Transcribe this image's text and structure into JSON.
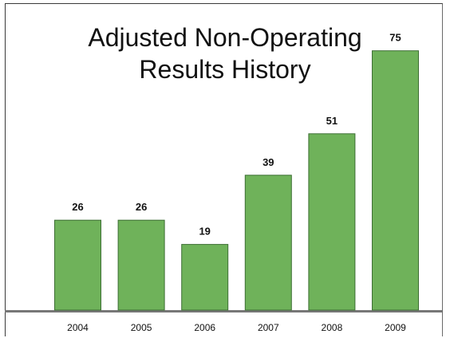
{
  "chart_data": {
    "type": "bar",
    "title_lines": [
      "Adjusted Non-Operating",
      "Results History"
    ],
    "categories": [
      "2004",
      "2005",
      "2006",
      "2007",
      "2008",
      "2009"
    ],
    "values": [
      26,
      26,
      19,
      39,
      51,
      75
    ],
    "xlabel": "",
    "ylabel": "",
    "ylim": [
      0,
      80
    ],
    "grid": false,
    "legend": "none",
    "bar_color": "#6fb25a",
    "bar_edge_color": "#3d6e34",
    "baseline_color": "#777777"
  }
}
